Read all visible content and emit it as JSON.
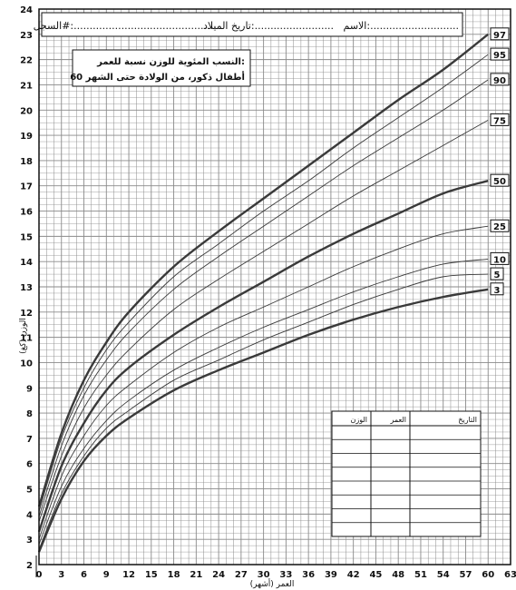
{
  "header": {
    "name_label": "الاسم:............................",
    "dob_label": "تاريخ الميلاد:.........................",
    "record_label": "السجل#:............................................"
  },
  "title_box": {
    "line1": "النسب المئوية للوزن نسبة للعمر:",
    "line2": "أطفال ذكور، من الولادة حتى الشهر 60"
  },
  "record_table": {
    "headers": [
      "الوزن",
      "العمر",
      "التاريخ"
    ],
    "rows": 8
  },
  "colors": {
    "grid": "#8a8a8a",
    "line": "#3a3a3a",
    "frame": "#111111"
  },
  "chart_data": {
    "type": "line",
    "xlabel": "العمر (أشهر)",
    "ylabel": "الوزن (كغ)",
    "xlim": [
      0,
      63
    ],
    "ylim": [
      2,
      24
    ],
    "x_ticks": [
      0,
      3,
      6,
      9,
      12,
      15,
      18,
      21,
      24,
      27,
      30,
      33,
      36,
      39,
      42,
      45,
      48,
      51,
      54,
      57,
      60,
      63
    ],
    "y_ticks": [
      2,
      3,
      4,
      5,
      6,
      7,
      8,
      9,
      10,
      11,
      12,
      13,
      14,
      15,
      16,
      17,
      18,
      19,
      20,
      21,
      22,
      23,
      24
    ],
    "grid": true,
    "x": [
      0,
      3,
      6,
      9,
      12,
      18,
      24,
      30,
      36,
      42,
      48,
      54,
      60
    ],
    "series": [
      {
        "name": "97",
        "values": [
          4.3,
          7.2,
          9.3,
          10.8,
          12.0,
          13.8,
          15.2,
          16.5,
          17.8,
          19.1,
          20.4,
          21.6,
          23.0
        ],
        "bold": true
      },
      {
        "name": "95",
        "values": [
          4.1,
          7.0,
          9.0,
          10.5,
          11.6,
          13.4,
          14.7,
          16.0,
          17.2,
          18.5,
          19.7,
          20.9,
          22.2
        ],
        "bold": false
      },
      {
        "name": "90",
        "values": [
          3.9,
          6.7,
          8.7,
          10.1,
          11.2,
          12.9,
          14.2,
          15.4,
          16.6,
          17.8,
          18.9,
          20.0,
          21.2
        ],
        "bold": false
      },
      {
        "name": "75",
        "values": [
          3.7,
          6.3,
          8.2,
          9.5,
          10.5,
          12.1,
          13.3,
          14.4,
          15.5,
          16.6,
          17.6,
          18.6,
          19.6
        ],
        "bold": false
      },
      {
        "name": "50",
        "values": [
          3.3,
          5.9,
          7.6,
          8.9,
          9.8,
          11.1,
          12.2,
          13.2,
          14.2,
          15.1,
          15.9,
          16.7,
          17.2
        ],
        "bold": true
      },
      {
        "name": "25",
        "values": [
          3.0,
          5.5,
          7.1,
          8.3,
          9.1,
          10.4,
          11.4,
          12.2,
          13.0,
          13.8,
          14.5,
          15.1,
          15.4
        ],
        "bold": false
      },
      {
        "name": "10",
        "values": [
          2.8,
          5.1,
          6.6,
          7.7,
          8.5,
          9.7,
          10.6,
          11.4,
          12.1,
          12.8,
          13.4,
          13.9,
          14.1
        ],
        "bold": false
      },
      {
        "name": "5",
        "values": [
          2.6,
          4.8,
          6.3,
          7.4,
          8.1,
          9.3,
          10.1,
          10.9,
          11.6,
          12.3,
          12.9,
          13.4,
          13.5
        ],
        "bold": false
      },
      {
        "name": "3",
        "values": [
          2.5,
          4.6,
          6.1,
          7.1,
          7.8,
          8.9,
          9.7,
          10.4,
          11.1,
          11.7,
          12.2,
          12.6,
          12.9
        ],
        "bold": true
      }
    ]
  }
}
